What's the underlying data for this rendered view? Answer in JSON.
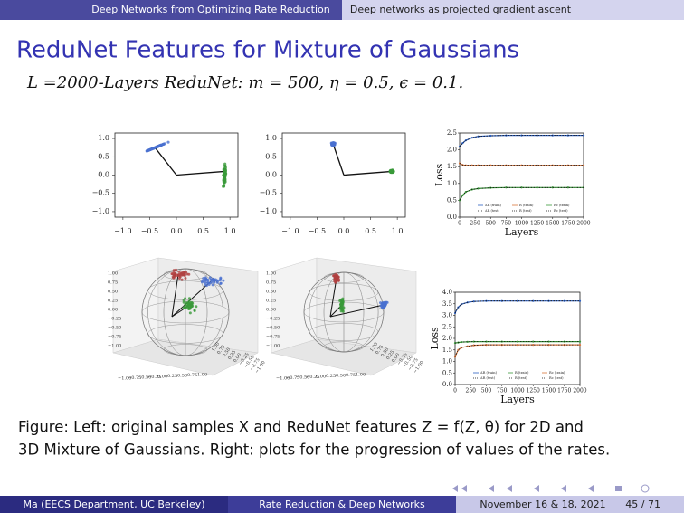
{
  "header": {
    "sections": [
      "Deep Networks from Optimizing Rate Reduction",
      "Deep networks as projected gradient ascent"
    ]
  },
  "title": "ReduNet Features for Mixture of Gaussians",
  "subtitle": "L =2000-Layers ReduNet: m = 500, η = 0.5, ϵ = 0.1.",
  "scatter_2d": {
    "ticks": [
      "−1.0",
      "−0.5",
      "0.0",
      "0.5",
      "1.0"
    ],
    "yticks": [
      "1.0",
      "0.5",
      "0.0",
      "−0.5",
      "−1.0"
    ]
  },
  "sphere_3d": {
    "ticks": [
      "1.00",
      "0.75",
      "0.50",
      "0.25",
      "0.00",
      "−0.25",
      "−0.50",
      "−0.75",
      "−1.00"
    ],
    "xticks": [
      "−1.00",
      "−0.75",
      "−0.50",
      "−0.25",
      "0.00",
      "0.25",
      "0.50",
      "0.75",
      "1.00"
    ]
  },
  "loss_plots": [
    {
      "ylabel": "Loss",
      "xlabel": "Layers",
      "x": [
        0,
        50,
        100,
        200,
        300,
        500,
        750,
        1000,
        1250,
        1500,
        1750,
        2000
      ],
      "xlim": [
        0,
        2000
      ],
      "ylim": [
        0,
        2.5
      ],
      "xticks": [
        0,
        250,
        500,
        750,
        1000,
        1250,
        1500,
        1750,
        2000
      ],
      "yticks": [
        {
          "value": 0,
          "label": "0.0"
        },
        {
          "value": 0.5,
          "label": "0.5"
        },
        {
          "value": 1,
          "label": "1.0"
        },
        {
          "value": 1.5,
          "label": "1.5"
        },
        {
          "value": 2,
          "label": "2.0"
        },
        {
          "value": 2.5,
          "label": "2.5"
        }
      ],
      "series": [
        {
          "name": "ΔR (train)",
          "color": "#2b5fc0",
          "values": [
            2.1,
            2.2,
            2.28,
            2.36,
            2.4,
            2.42,
            2.43,
            2.43,
            2.43,
            2.43,
            2.43,
            2.43
          ]
        },
        {
          "name": "ΔR (test)",
          "color": "#111111",
          "values": [
            2.1,
            2.2,
            2.28,
            2.36,
            2.4,
            2.42,
            2.43,
            2.43,
            2.43,
            2.43,
            2.43,
            2.43
          ]
        },
        {
          "name": "R (train)",
          "color": "#d8743a",
          "values": [
            1.6,
            1.55,
            1.54,
            1.54,
            1.54,
            1.54,
            1.54,
            1.54,
            1.54,
            1.54,
            1.54,
            1.54
          ]
        },
        {
          "name": "R (test)",
          "color": "#111111",
          "values": [
            1.6,
            1.55,
            1.54,
            1.54,
            1.54,
            1.54,
            1.54,
            1.54,
            1.54,
            1.54,
            1.54,
            1.54
          ]
        },
        {
          "name": "Rc (train)",
          "color": "#3a9a3a",
          "values": [
            0.5,
            0.65,
            0.75,
            0.82,
            0.85,
            0.87,
            0.88,
            0.88,
            0.88,
            0.88,
            0.88,
            0.88
          ]
        },
        {
          "name": "Rc (test)",
          "color": "#111111",
          "values": [
            0.5,
            0.65,
            0.75,
            0.82,
            0.85,
            0.87,
            0.88,
            0.88,
            0.88,
            0.88,
            0.88,
            0.88
          ]
        }
      ]
    },
    {
      "ylabel": "Loss",
      "xlabel": "Layers",
      "x": [
        0,
        50,
        100,
        200,
        300,
        500,
        750,
        1000,
        1250,
        1500,
        1750,
        2000
      ],
      "xlim": [
        0,
        2000
      ],
      "ylim": [
        0,
        4
      ],
      "xticks": [
        0,
        250,
        500,
        750,
        1000,
        1250,
        1500,
        1750,
        2000
      ],
      "yticks": [
        {
          "value": 0,
          "label": "0.0"
        },
        {
          "value": 0.5,
          "label": "0.5"
        },
        {
          "value": 1,
          "label": "1.0"
        },
        {
          "value": 1.5,
          "label": "1.5"
        },
        {
          "value": 2,
          "label": "2.0"
        },
        {
          "value": 2.5,
          "label": "2.5"
        },
        {
          "value": 3,
          "label": "3.0"
        },
        {
          "value": 3.5,
          "label": "3.5"
        },
        {
          "value": 4,
          "label": "4.0"
        }
      ],
      "series": [
        {
          "name": "ΔR (train)",
          "color": "#2b5fc0",
          "values": [
            3.1,
            3.35,
            3.48,
            3.56,
            3.6,
            3.62,
            3.62,
            3.62,
            3.62,
            3.62,
            3.62,
            3.62
          ]
        },
        {
          "name": "ΔR (test)",
          "color": "#111111",
          "values": [
            3.1,
            3.35,
            3.48,
            3.56,
            3.6,
            3.62,
            3.62,
            3.62,
            3.62,
            3.62,
            3.62,
            3.62
          ]
        },
        {
          "name": "R (train)",
          "color": "#3a9a3a",
          "values": [
            1.8,
            1.82,
            1.84,
            1.85,
            1.86,
            1.86,
            1.86,
            1.86,
            1.86,
            1.86,
            1.86,
            1.86
          ]
        },
        {
          "name": "R (test)",
          "color": "#111111",
          "values": [
            1.8,
            1.82,
            1.84,
            1.85,
            1.86,
            1.86,
            1.86,
            1.86,
            1.86,
            1.86,
            1.86,
            1.86
          ]
        },
        {
          "name": "Rc (train)",
          "color": "#d8743a",
          "values": [
            1.2,
            1.5,
            1.6,
            1.66,
            1.7,
            1.72,
            1.72,
            1.72,
            1.72,
            1.72,
            1.72,
            1.72
          ]
        },
        {
          "name": "Rc (test)",
          "color": "#111111",
          "values": [
            1.2,
            1.5,
            1.6,
            1.66,
            1.7,
            1.72,
            1.72,
            1.72,
            1.72,
            1.72,
            1.72,
            1.72
          ]
        }
      ]
    }
  ],
  "caption": [
    "Figure: Left: original samples X and ReduNet features Z = f(Z, θ) for 2D and",
    "3D Mixture of Gaussians. Right: plots for the progression of values of the rates."
  ],
  "footer": {
    "author": "Ma  (EECS Department, UC Berkeley)",
    "title": "Rate Reduction & Deep Networks",
    "date": "November 16 & 18, 2021",
    "page": "45 / 71"
  }
}
